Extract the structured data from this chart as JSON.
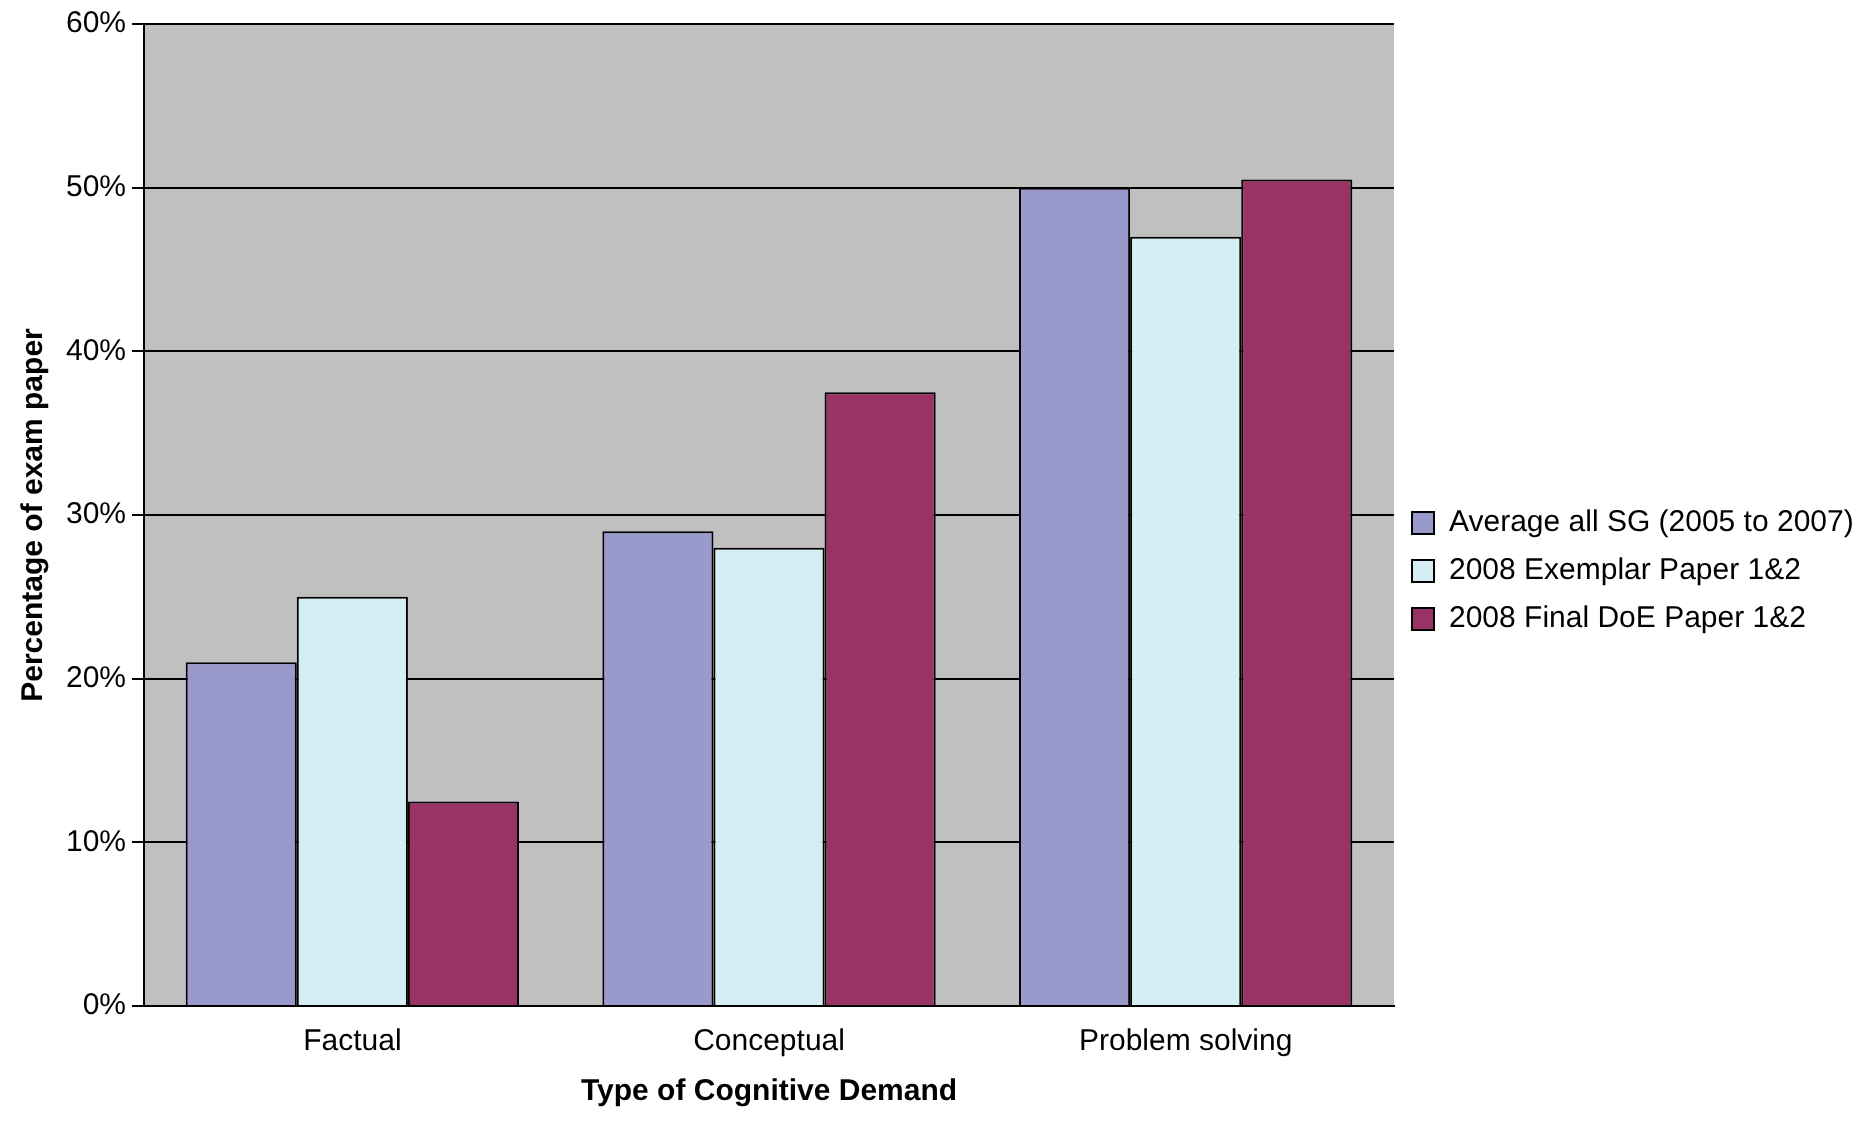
{
  "chart_data": {
    "type": "bar",
    "xlabel": "Type of Cognitive Demand",
    "ylabel": "Percentage of exam paper",
    "categories": [
      "Factual",
      "Conceptual",
      "Problem solving"
    ],
    "series": [
      {
        "name": "Average all SG (2005 to 2007)",
        "color": "#9999cc",
        "values": [
          21,
          29,
          50
        ]
      },
      {
        "name": "2008 Exemplar Paper 1&2",
        "color": "#d4eef4",
        "values": [
          25,
          28,
          47
        ]
      },
      {
        "name": "2008 Final DoE Paper 1&2",
        "color": "#993366",
        "values": [
          12.5,
          37.5,
          50.5
        ]
      }
    ],
    "ylim": [
      0,
      60
    ],
    "yticks": [
      {
        "value": 0,
        "label": "0%"
      },
      {
        "value": 10,
        "label": "10%"
      },
      {
        "value": 20,
        "label": "20%"
      },
      {
        "value": 30,
        "label": "30%"
      },
      {
        "value": 40,
        "label": "40%"
      },
      {
        "value": 50,
        "label": "50%"
      },
      {
        "value": 60,
        "label": "60%"
      }
    ],
    "grid": "y",
    "legend": "right"
  }
}
